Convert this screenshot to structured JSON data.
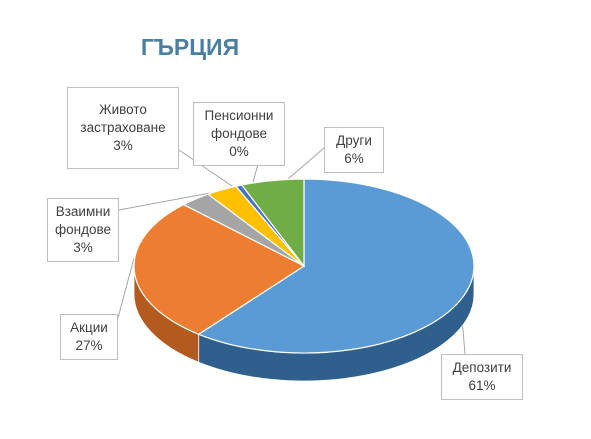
{
  "chart_data": {
    "type": "pie",
    "title": "ГЪРЦИЯ",
    "three_d": true,
    "slices": [
      {
        "name": "Депозити",
        "value": 61,
        "label": "61%",
        "color": "#5b9bd5",
        "side_color": "#2f5f8c"
      },
      {
        "name": "Акции",
        "value": 27,
        "label": "27%",
        "color": "#ed7d31",
        "side_color": "#b35a1f"
      },
      {
        "name": "Взаимни фондове",
        "value": 3,
        "label": "3%",
        "color": "#a5a5a5",
        "side_color": "#7a7a7a"
      },
      {
        "name": "Живото застраховане",
        "value": 3,
        "label": "3%",
        "color": "#ffc000",
        "side_color": "#c79500"
      },
      {
        "name": "Пенсионни фондове",
        "value": 0,
        "label": "0%",
        "color": "#4472c4",
        "side_color": "#2f528f"
      },
      {
        "name": "Други",
        "value": 6,
        "label": "6%",
        "color": "#70ad47",
        "side_color": "#4e7a31"
      }
    ],
    "label_lines": {
      "deposits": [
        "Депозити",
        "61%"
      ],
      "shares": [
        "Акции",
        "27%"
      ],
      "mutual": [
        "Взаимни",
        "фондове",
        "3%"
      ],
      "life": [
        "Живото",
        "застраховане",
        "3%"
      ],
      "pension": [
        "Пенсионни",
        "фондове",
        "0%"
      ],
      "other": [
        "Други",
        "6%"
      ]
    },
    "legend": "none"
  }
}
